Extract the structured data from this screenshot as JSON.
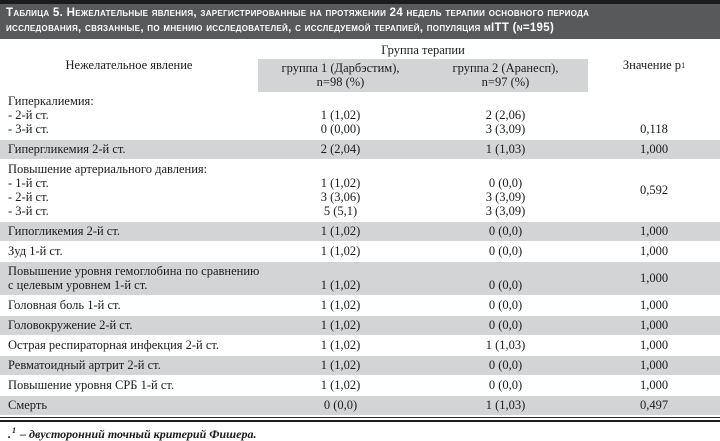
{
  "colors": {
    "top_bar": "#1c1c1c",
    "title_bg": "#58595b",
    "title_text": "#ffffff",
    "shade": "#d3d4d6",
    "text": "#1c1c1c"
  },
  "table": {
    "title_lines": [
      "Таблица 5. Нежелательные явления, зарегистрированные на протяжении 24 недель терапии основного периода",
      "исследования, связанные, по мнению исследователей, с исследуемой терапией, популяция mITT (n=195)"
    ],
    "header": {
      "event_col": "Нежелательное явление",
      "group_title": "Группа терапии",
      "group1_lines": [
        "группа 1 (Дарбэстим),",
        "n=98 (%)"
      ],
      "group2_lines": [
        "группа 2 (Аранесп),",
        "n=97 (%)"
      ],
      "p_col": {
        "label": "Значение p",
        "sup": "1"
      }
    },
    "rows": [
      {
        "label": [
          "Гиперкалиемия:",
          "- 2-й ст.",
          "- 3-й ст."
        ],
        "g1": [
          "",
          "1 (1,02)",
          "0 (0,00)"
        ],
        "g2": [
          "",
          "2 (2,06)",
          "3 (3,09)"
        ],
        "p": "0,118",
        "p_line": 2
      },
      {
        "label": [
          "Гипергликемия 2-й ст."
        ],
        "g1": [
          "2 (2,04)"
        ],
        "g2": [
          "1 (1,03)"
        ],
        "p": "1,000"
      },
      {
        "label": [
          "Повышение артериального давления:",
          "- 1-й ст.",
          "- 2-й ст.",
          "- 3-й ст."
        ],
        "g1": [
          "",
          "1 (1,02)",
          "3 (3,06)",
          "5 (5,1)"
        ],
        "g2": [
          "",
          "0 (0,0)",
          "3 (3,09)",
          "3 (3,09)"
        ],
        "p": "0,592"
      },
      {
        "label": [
          "Гипогликемия 2-й ст."
        ],
        "g1": [
          "1 (1,02)"
        ],
        "g2": [
          "0 (0,0)"
        ],
        "p": "1,000"
      },
      {
        "label": [
          "Зуд 1-й ст."
        ],
        "g1": [
          "1 (1,02)"
        ],
        "g2": [
          "0 (0,0)"
        ],
        "p": "1,000"
      },
      {
        "label": [
          "Повышение уровня гемоглобина по сравнению",
          "с целевым уровнем 1-й ст."
        ],
        "g1": [
          "",
          "1 (1,02)"
        ],
        "g2": [
          "",
          "0 (0,0)"
        ],
        "p": "1,000"
      },
      {
        "label": [
          "Головная боль 1-й ст."
        ],
        "g1": [
          "1 (1,02)"
        ],
        "g2": [
          "0 (0,0)"
        ],
        "p": "1,000"
      },
      {
        "label": [
          "Головокружение 2-й ст."
        ],
        "g1": [
          "1 (1,02)"
        ],
        "g2": [
          "0 (0,0)"
        ],
        "p": "1,000"
      },
      {
        "label": [
          "Острая респираторная инфекция 2-й ст."
        ],
        "g1": [
          "1 (1,02)"
        ],
        "g2": [
          "1 (1,03)"
        ],
        "p": "1,000"
      },
      {
        "label": [
          "Ревматоидный артрит 2-й ст."
        ],
        "g1": [
          "1 (1,02)"
        ],
        "g2": [
          "0 (0,0)"
        ],
        "p": "1,000"
      },
      {
        "label": [
          "Повышение уровня СРБ 1-й ст."
        ],
        "g1": [
          "1 (1,02)"
        ],
        "g2": [
          "0 (0,0)"
        ],
        "p": "1,000"
      },
      {
        "label": [
          "Смерть"
        ],
        "g1": [
          "0 (0,0)"
        ],
        "g2": [
          "1 (1,03)"
        ],
        "p": "0,497"
      }
    ],
    "footnote": {
      "prefix": ".",
      "sup": "1",
      "text": "– двусторонний точный критерий Фишера."
    }
  }
}
